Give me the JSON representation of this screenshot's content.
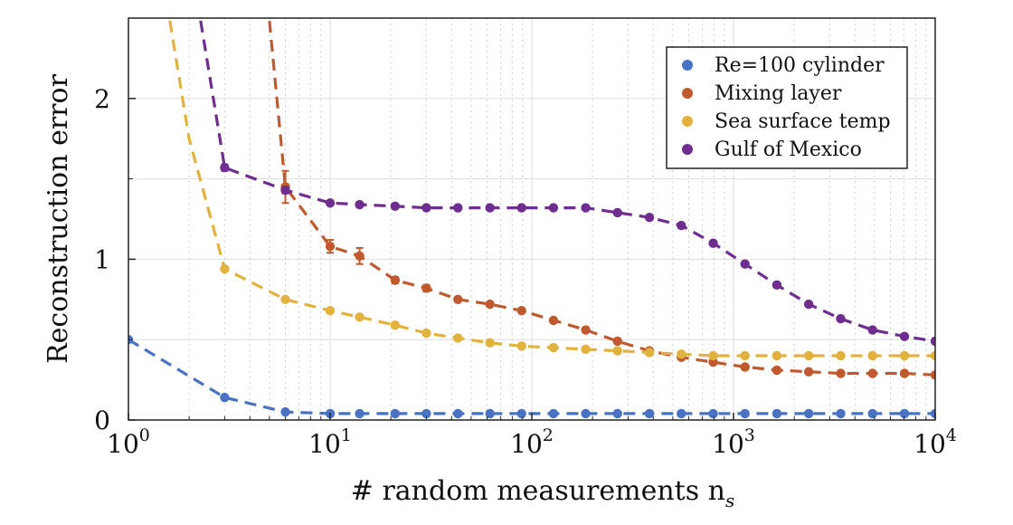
{
  "chart_data": {
    "type": "line",
    "xlabel": "# random measurements n",
    "xlabel_subscript": "s",
    "ylabel": "Reconstruction error",
    "x_scale": "log",
    "xlim": [
      1,
      10000
    ],
    "ylim": [
      0,
      2.5
    ],
    "x_ticks": [
      {
        "value": 1,
        "base": "10",
        "exp": "0"
      },
      {
        "value": 10,
        "base": "10",
        "exp": "1"
      },
      {
        "value": 100,
        "base": "10",
        "exp": "2"
      },
      {
        "value": 1000,
        "base": "10",
        "exp": "3"
      },
      {
        "value": 10000,
        "base": "10",
        "exp": "4"
      }
    ],
    "y_ticks": [
      {
        "value": 0,
        "label": "0"
      },
      {
        "value": 1,
        "label": "1"
      },
      {
        "value": 2,
        "label": "2"
      }
    ],
    "y_minor_ticks": [
      0.5,
      1.5
    ],
    "grid": true,
    "legend_position": "top-right",
    "series": [
      {
        "name": "Re=100 cylinder",
        "color": "#4a72c2",
        "x": [
          1,
          3,
          6,
          10,
          14,
          21,
          30,
          43,
          62,
          89,
          128,
          185,
          266,
          383,
          551,
          793,
          1140,
          1640,
          2360,
          3400,
          4890,
          7040,
          10000
        ],
        "y": [
          0.5,
          0.14,
          0.05,
          0.04,
          0.04,
          0.04,
          0.04,
          0.04,
          0.04,
          0.04,
          0.04,
          0.04,
          0.04,
          0.04,
          0.04,
          0.04,
          0.04,
          0.04,
          0.04,
          0.04,
          0.04,
          0.04,
          0.04
        ],
        "y_start": 0.5,
        "x_start": 1,
        "err": [
          0,
          0,
          0,
          0,
          0,
          0,
          0,
          0,
          0,
          0,
          0,
          0,
          0,
          0,
          0,
          0,
          0,
          0,
          0,
          0,
          0,
          0,
          0
        ]
      },
      {
        "name": "Mixing layer",
        "color": "#c05a2e",
        "x": [
          6,
          10,
          14,
          21,
          30,
          43,
          62,
          89,
          128,
          185,
          266,
          383,
          551,
          793,
          1140,
          1640,
          2360,
          3400,
          4890,
          7040,
          10000
        ],
        "y": [
          1.45,
          1.08,
          1.02,
          0.87,
          0.82,
          0.75,
          0.72,
          0.68,
          0.62,
          0.56,
          0.49,
          0.43,
          0.39,
          0.36,
          0.33,
          0.31,
          0.3,
          0.29,
          0.29,
          0.29,
          0.28
        ],
        "err": [
          0.1,
          0.04,
          0.05,
          0.02,
          0.02,
          0.01,
          0.01,
          0.01,
          0.01,
          0.01,
          0,
          0,
          0,
          0,
          0,
          0,
          0,
          0,
          0,
          0,
          0
        ],
        "lead_in": [
          [
            4.9,
            2.6
          ],
          [
            6,
            1.45
          ]
        ]
      },
      {
        "name": "Sea surface temp",
        "color": "#e2b23f",
        "x": [
          3,
          6,
          10,
          14,
          21,
          30,
          43,
          62,
          89,
          128,
          185,
          266,
          383,
          551,
          793,
          1140,
          1640,
          2360,
          3400,
          4890,
          7040,
          10000
        ],
        "y": [
          0.94,
          0.75,
          0.68,
          0.64,
          0.59,
          0.54,
          0.51,
          0.48,
          0.46,
          0.45,
          0.44,
          0.43,
          0.42,
          0.41,
          0.4,
          0.4,
          0.4,
          0.4,
          0.4,
          0.4,
          0.4,
          0.4
        ],
        "err": [
          0,
          0,
          0,
          0,
          0,
          0,
          0,
          0,
          0,
          0,
          0,
          0,
          0,
          0,
          0,
          0,
          0,
          0,
          0,
          0,
          0,
          0
        ],
        "lead_in": [
          [
            1.55,
            2.6
          ],
          [
            2,
            1.75
          ],
          [
            3,
            0.94
          ]
        ]
      },
      {
        "name": "Gulf of Mexico",
        "color": "#6e2d8f",
        "x": [
          3,
          6,
          10,
          14,
          21,
          30,
          43,
          62,
          89,
          128,
          185,
          266,
          383,
          551,
          793,
          1140,
          1640,
          2360,
          3400,
          4890,
          7040,
          10000
        ],
        "y": [
          1.57,
          1.43,
          1.35,
          1.34,
          1.33,
          1.32,
          1.32,
          1.32,
          1.32,
          1.32,
          1.32,
          1.29,
          1.26,
          1.21,
          1.1,
          0.97,
          0.84,
          0.72,
          0.63,
          0.56,
          0.52,
          0.49
        ],
        "err": [
          0.02,
          0.02,
          0.01,
          0,
          0,
          0,
          0,
          0,
          0,
          0,
          0,
          0,
          0,
          0,
          0,
          0,
          0,
          0,
          0,
          0,
          0,
          0
        ],
        "lead_in": [
          [
            2.2,
            2.6
          ],
          [
            3,
            1.57
          ]
        ]
      }
    ]
  }
}
